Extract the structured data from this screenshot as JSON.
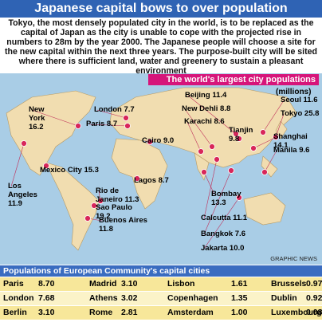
{
  "header": {
    "title": "Japanese capital bows to over population",
    "intro": "Tokyo, the most densely populated city in the world, is to be replaced as the capital of Japan as the city is unable to cope with the projected rise in numbers to 28m by the year 2000. The Japanese people will choose a site for the new capital within the next three years. The purpose-built city will be sited where there is sufficient land, water and greenery to sustain a pleasant environment"
  },
  "map": {
    "title": "The world's largest city populations",
    "units": "(millions)",
    "cities": [
      {
        "name": "New York",
        "value": "16.2"
      },
      {
        "name": "London",
        "value": "7.7"
      },
      {
        "name": "Paris",
        "value": "8.7"
      },
      {
        "name": "Beijing",
        "value": "11.4"
      },
      {
        "name": "New Dehli",
        "value": "8.8"
      },
      {
        "name": "Karachi",
        "value": "8.6"
      },
      {
        "name": "Seoul",
        "value": "11.6"
      },
      {
        "name": "Tokyo",
        "value": "25.8"
      },
      {
        "name": "Tianjin",
        "value": "9.8"
      },
      {
        "name": "Shanghai",
        "value": "14.1"
      },
      {
        "name": "Manila",
        "value": "9.6"
      },
      {
        "name": "Cairo",
        "value": "9.0"
      },
      {
        "name": "Mexico City",
        "value": "15.3"
      },
      {
        "name": "Los Angeles",
        "value": "11.9"
      },
      {
        "name": "Lagos",
        "value": "8.7"
      },
      {
        "name": "Bombay",
        "value": "13.3"
      },
      {
        "name": "Calcutta",
        "value": "11.1"
      },
      {
        "name": "Bangkok",
        "value": "7.6"
      },
      {
        "name": "Jakarta",
        "value": "10.0"
      },
      {
        "name": "Rio de Janeiro",
        "value": "11.3"
      },
      {
        "name": "Sao Paulo",
        "value": "19.2"
      },
      {
        "name": "Buenos Aires",
        "value": "11.8"
      }
    ],
    "credit": "GRAPHIC NEWS"
  },
  "table": {
    "title": "Populations of European Community's capital cities",
    "rows": [
      [
        [
          "Paris",
          "8.70"
        ],
        [
          "Madrid",
          "3.10"
        ],
        [
          "Lisbon",
          "1.61"
        ],
        [
          "Brussels",
          "0.97"
        ]
      ],
      [
        [
          "London",
          "7.68"
        ],
        [
          "Athens",
          "3.02"
        ],
        [
          "Copenhagen",
          "1.35"
        ],
        [
          "Dublin",
          "0.92"
        ]
      ],
      [
        [
          "Berlin",
          "3.10"
        ],
        [
          "Rome",
          "2.81"
        ],
        [
          "Amsterdam",
          "1.00"
        ],
        [
          "Luxembourg",
          "0.08"
        ]
      ]
    ]
  }
}
